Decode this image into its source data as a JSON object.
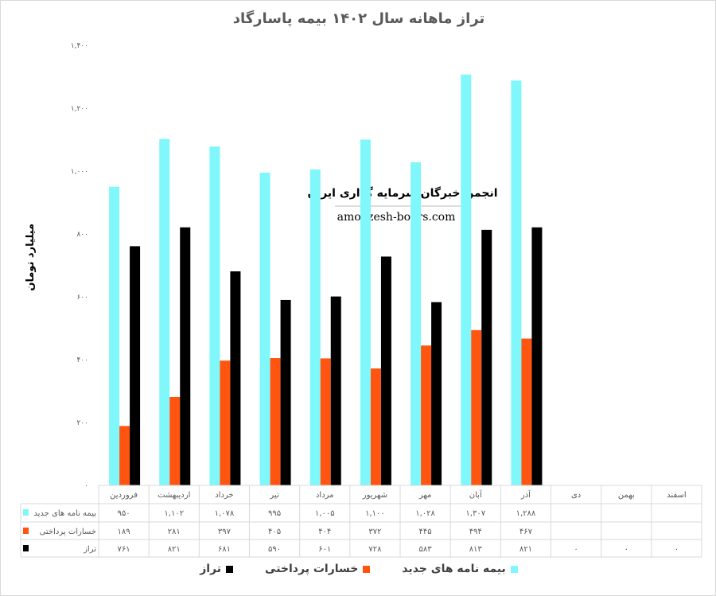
{
  "chart_data": {
    "type": "bar",
    "title": "تراز ماهانه سال ۱۴۰۲ بیمه پاسارگاد",
    "ylabel": "میلیارد تومان",
    "xlabel": "",
    "ylim": [
      0,
      1400
    ],
    "yticks": [
      "۰",
      "۲۰۰",
      "۴۰۰",
      "۶۰۰",
      "۸۰۰",
      "۱,۰۰۰",
      "۱,۲۰۰",
      "۱,۴۰۰"
    ],
    "grid": false,
    "legend_position": "bottom",
    "categories": [
      "فروردین",
      "اردیبهشت",
      "خرداد",
      "تیر",
      "مرداد",
      "شهریور",
      "مهر",
      "آبان",
      "آذر",
      "دی",
      "بهمن",
      "اسفند"
    ],
    "series": [
      {
        "name": "بیمه نامه های جدید",
        "color": "#7ff7fb",
        "values": [
          950,
          1102,
          1078,
          995,
          1005,
          1100,
          1028,
          1307,
          1288,
          null,
          null,
          null
        ]
      },
      {
        "name": "خسارات پرداختی",
        "color": "#ff5511",
        "values": [
          189,
          281,
          397,
          405,
          404,
          372,
          445,
          494,
          467,
          null,
          null,
          null
        ]
      },
      {
        "name": "تراز",
        "color": "#000000",
        "values": [
          761,
          821,
          681,
          590,
          601,
          728,
          583,
          813,
          821,
          0,
          0,
          0
        ]
      }
    ],
    "data_table": true
  },
  "watermark": {
    "line1": "انجمن خبرگان سرمایه گذاری ایران",
    "line2": "amoozesh-boors.com"
  }
}
